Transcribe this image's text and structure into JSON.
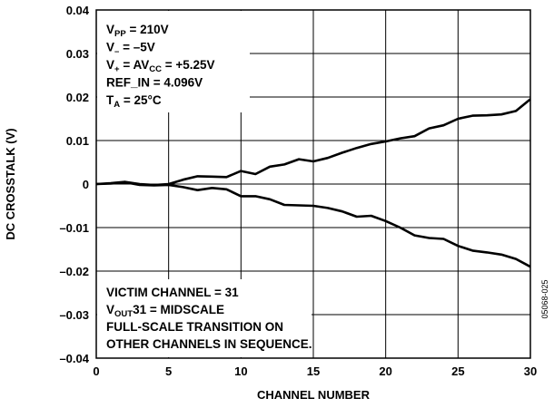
{
  "chart_data": {
    "type": "line",
    "title": "",
    "xlabel": "CHANNEL NUMBER",
    "ylabel": "DC CROSSTALK (V)",
    "xlim": [
      0,
      30
    ],
    "ylim": [
      -0.04,
      0.04
    ],
    "x_ticks": [
      0,
      5,
      10,
      15,
      20,
      25,
      30
    ],
    "y_ticks": [
      0.04,
      0.03,
      0.02,
      0.01,
      0,
      -0.01,
      -0.02,
      -0.03,
      -0.04
    ],
    "x_tick_labels": [
      "0",
      "5",
      "10",
      "15",
      "20",
      "25",
      "30"
    ],
    "y_tick_labels": [
      "0.04",
      "0.03",
      "0.02",
      "0.01",
      "0",
      "–0.01",
      "–0.02",
      "–0.03",
      "–0.04"
    ],
    "grid": true,
    "legend": "none",
    "x": [
      0,
      1,
      2,
      3,
      4,
      5,
      6,
      7,
      8,
      9,
      10,
      11,
      12,
      13,
      14,
      15,
      16,
      17,
      18,
      19,
      20,
      21,
      22,
      23,
      24,
      25,
      26,
      27,
      28,
      29,
      30
    ],
    "series": [
      {
        "values": [
          0,
          0.0002,
          0.0005,
          0,
          -0.0002,
          0,
          0.001,
          0.0018,
          0.0017,
          0.0016,
          0.003,
          0.0023,
          0.004,
          0.0045,
          0.0057,
          0.0052,
          0.006,
          0.0072,
          0.0083,
          0.0092,
          0.0098,
          0.0105,
          0.011,
          0.0128,
          0.0135,
          0.015,
          0.0157,
          0.0158,
          0.016,
          0.0168,
          0.0195
        ]
      },
      {
        "values": [
          0,
          0.0001,
          0.0004,
          -0.0002,
          -0.0003,
          -0.0002,
          -0.0007,
          -0.0014,
          -0.0009,
          -0.0012,
          -0.0028,
          -0.0028,
          -0.0035,
          -0.0048,
          -0.0049,
          -0.005,
          -0.0055,
          -0.0063,
          -0.0075,
          -0.0073,
          -0.0085,
          -0.01,
          -0.0118,
          -0.0124,
          -0.0126,
          -0.0142,
          -0.0153,
          -0.0157,
          -0.0162,
          -0.0172,
          -0.019
        ]
      }
    ]
  },
  "annotations": {
    "top": [
      {
        "main": "V",
        "sub": "PP",
        "rest": " = 210V"
      },
      {
        "main": "V",
        "sub": "–",
        "rest": " = –5V"
      },
      {
        "main": "V",
        "sub": "+",
        "rest": " = AV",
        "sub2": "CC",
        "rest2": " = +5.25V"
      },
      {
        "main": "REF_IN = 4.096V"
      },
      {
        "main": "T",
        "sub": "A",
        "rest": " = 25°C"
      }
    ],
    "bottom": [
      {
        "main": "VICTIM CHANNEL = 31"
      },
      {
        "main": "V",
        "sub": "OUT",
        "rest": "31 = MIDSCALE"
      },
      {
        "main": "FULL-SCALE TRANSITION ON"
      },
      {
        "main": "OTHER CHANNELS IN SEQUENCE."
      }
    ]
  },
  "figure_id": "05068-025"
}
